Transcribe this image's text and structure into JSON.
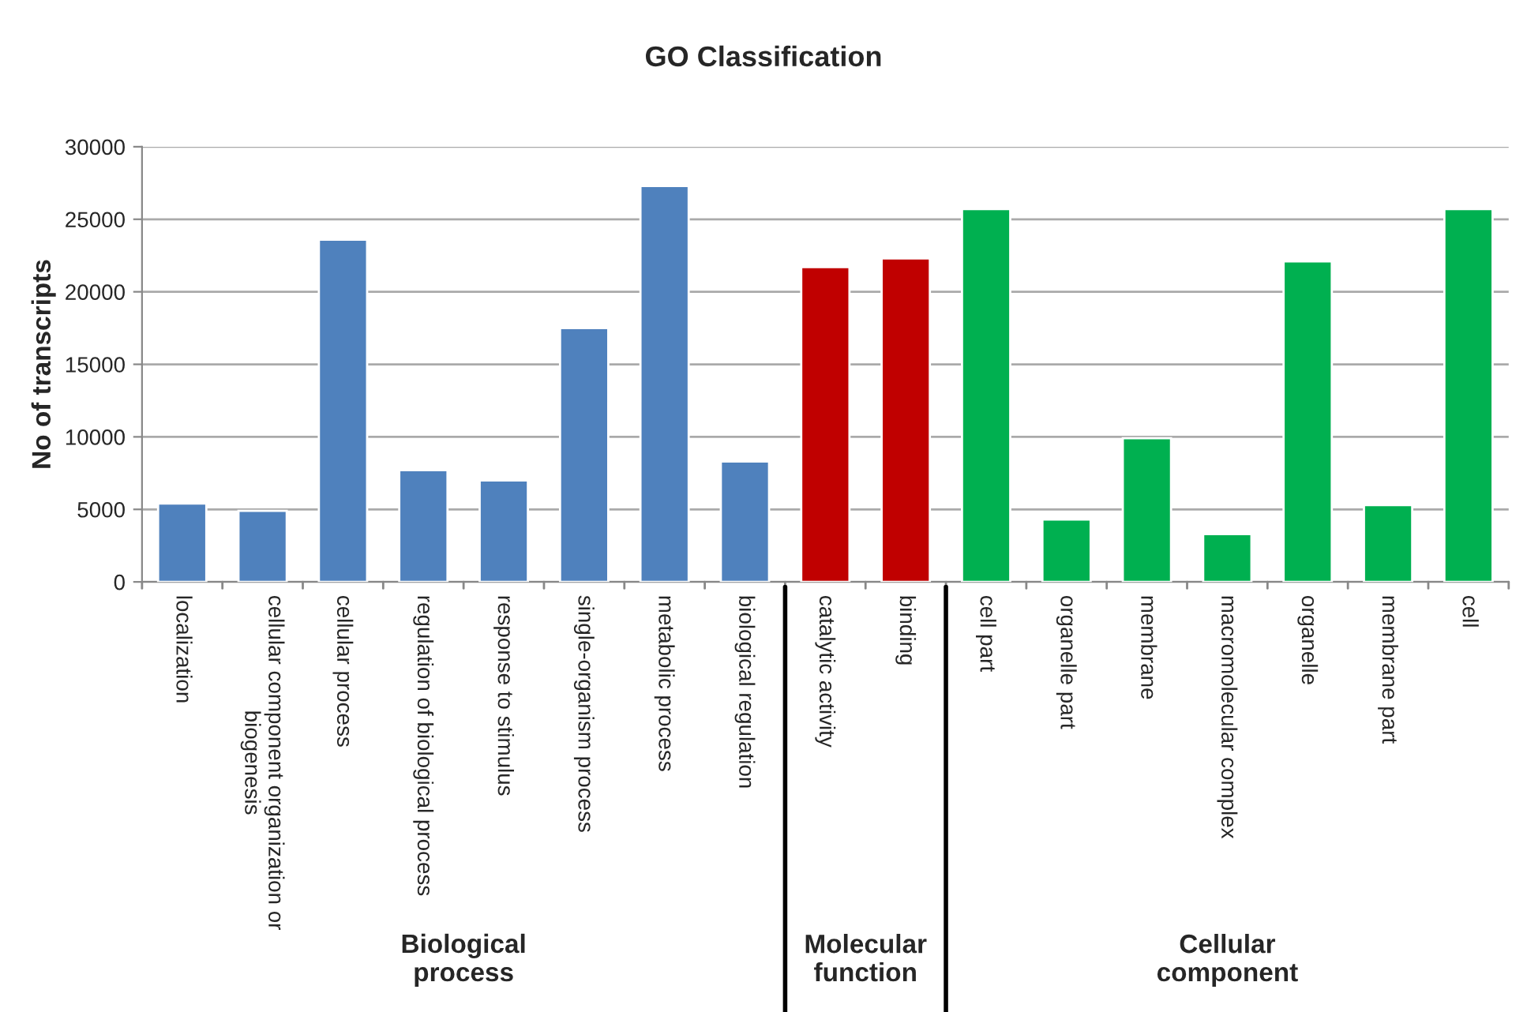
{
  "chart_data": {
    "type": "bar",
    "title": "GO Classification",
    "ylabel": "No of transcripts",
    "categories": [
      "localization",
      "cellular component organization or biogenesis",
      "cellular process",
      "regulation of biological process",
      "response to stimulus",
      "single-organism process",
      "metabolic process",
      "biological regulation",
      "catalytic activity",
      "binding",
      "cell part",
      "organelle part",
      "membrane",
      "macromolecular complex",
      "organelle",
      "membrane part",
      "cell"
    ],
    "values": [
      5400,
      4900,
      23600,
      7700,
      7000,
      17500,
      27300,
      8300,
      21700,
      22300,
      25700,
      4300,
      9900,
      3300,
      22100,
      5300,
      25700
    ],
    "colors": [
      "#4f81bd",
      "#4f81bd",
      "#4f81bd",
      "#4f81bd",
      "#4f81bd",
      "#4f81bd",
      "#4f81bd",
      "#4f81bd",
      "#c00000",
      "#c00000",
      "#00b050",
      "#00b050",
      "#00b050",
      "#00b050",
      "#00b050",
      "#00b050",
      "#00b050"
    ],
    "ylim": [
      0,
      30000
    ],
    "yticks": [
      0,
      5000,
      10000,
      15000,
      20000,
      25000,
      30000
    ],
    "grid": "y",
    "annotations": [
      "Biological process",
      "Molecular function",
      "Cellular component"
    ]
  }
}
